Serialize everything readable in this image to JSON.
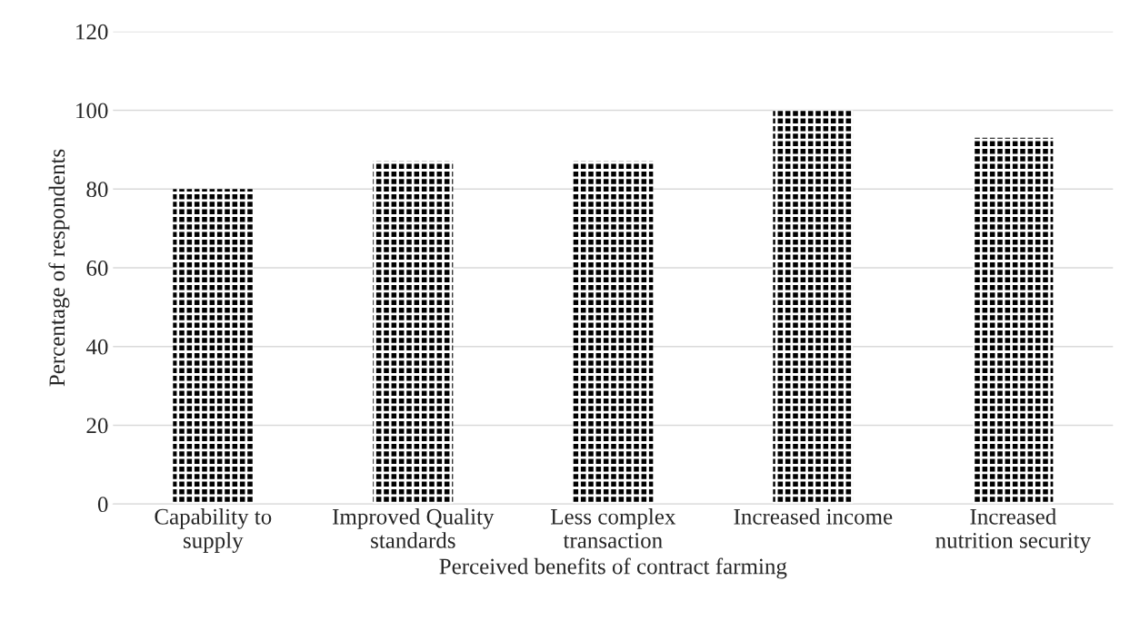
{
  "chart_data": {
    "type": "bar",
    "categories": [
      "Capability to\nsupply",
      "Improved Quality\nstandards",
      "Less complex\ntransaction",
      "Increased income",
      "Increased\nnutrition security"
    ],
    "values": [
      80,
      87,
      87,
      100,
      93
    ],
    "color": "#000000",
    "xlabel": "Perceived benefits of contract farming",
    "ylabel": "Percentage of respondents",
    "ylim": [
      0,
      120
    ],
    "yticks": [
      0,
      20,
      40,
      60,
      80,
      100,
      120
    ],
    "grid": "y",
    "legend": false
  }
}
